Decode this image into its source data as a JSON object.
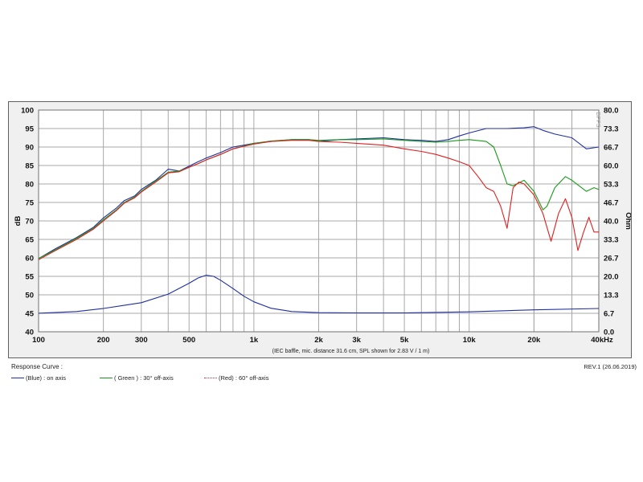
{
  "chart_data": {
    "type": "line",
    "note": "(IEC baffle, mic. distance 31.6 cm, SPL shown for 2.83 V / 1 m)",
    "xlabel": "",
    "ylabel": "dB",
    "y2label": "Ohm",
    "xlim": [
      100,
      40000
    ],
    "xscale": "log",
    "ylim": [
      40,
      100
    ],
    "y2lim": [
      0,
      80
    ],
    "grid": true,
    "x_ticks": [
      {
        "value": 100,
        "label": "100"
      },
      {
        "value": 200,
        "label": "200"
      },
      {
        "value": 300,
        "label": "300"
      },
      {
        "value": 500,
        "label": "500"
      },
      {
        "value": 1000,
        "label": "1k"
      },
      {
        "value": 2000,
        "label": "2k"
      },
      {
        "value": 3000,
        "label": "3k"
      },
      {
        "value": 5000,
        "label": "5k"
      },
      {
        "value": 10000,
        "label": "10k"
      },
      {
        "value": 20000,
        "label": "20k"
      },
      {
        "value": 40000,
        "label": "40kHz"
      }
    ],
    "y_ticks": [
      "40",
      "45",
      "50",
      "55",
      "60",
      "65",
      "70",
      "75",
      "80",
      "85",
      "90",
      "95",
      "100"
    ],
    "y2_ticks": [
      "0.0",
      "6.7",
      "13.3",
      "20.0",
      "26.7",
      "33.3",
      "40.0",
      "46.7",
      "53.3",
      "60.0",
      "66.7",
      "73.3",
      "80.0"
    ],
    "series": [
      {
        "name": "(Blue) : on axis",
        "axis": "left",
        "color": "#1f2fa0",
        "x": [
          100,
          120,
          150,
          180,
          200,
          230,
          250,
          280,
          300,
          350,
          400,
          450,
          500,
          550,
          600,
          700,
          800,
          900,
          1000,
          1200,
          1500,
          1800,
          2000,
          2500,
          3000,
          4000,
          5000,
          6000,
          7000,
          8000,
          9000,
          10000,
          12000,
          15000,
          18000,
          20000,
          22000,
          25000,
          30000,
          35000,
          40000
        ],
        "y": [
          59.8,
          62.5,
          65.5,
          68.3,
          70.8,
          73.5,
          75.5,
          76.8,
          78.5,
          81.0,
          84.0,
          83.5,
          84.8,
          86.0,
          87.0,
          88.5,
          90.0,
          90.5,
          91.0,
          91.5,
          92.0,
          92.0,
          91.5,
          92.0,
          92.2,
          92.5,
          92.0,
          91.8,
          91.5,
          92.0,
          93.0,
          93.8,
          95.0,
          95.0,
          95.2,
          95.5,
          94.5,
          93.5,
          92.5,
          89.5,
          90.0
        ]
      },
      {
        "name": "( Green ) : 30° off-axis",
        "axis": "left",
        "color": "#1a9a1a",
        "x": [
          100,
          120,
          150,
          180,
          200,
          230,
          250,
          280,
          300,
          350,
          400,
          450,
          500,
          550,
          600,
          700,
          800,
          900,
          1000,
          1200,
          1500,
          1800,
          2000,
          2500,
          3000,
          4000,
          5000,
          6000,
          7000,
          8000,
          9000,
          10000,
          12000,
          13000,
          14000,
          15000,
          16000,
          18000,
          20000,
          22000,
          23000,
          25000,
          28000,
          30000,
          35000,
          38000,
          40000
        ],
        "y": [
          59.8,
          62.2,
          65.3,
          68.0,
          70.3,
          73.0,
          75.0,
          76.5,
          78.0,
          80.8,
          83.2,
          83.5,
          84.5,
          85.5,
          86.5,
          88.0,
          89.5,
          90.3,
          91.0,
          91.6,
          92.0,
          92.0,
          91.8,
          92.0,
          92.0,
          92.2,
          91.8,
          91.5,
          91.3,
          91.5,
          91.8,
          92.0,
          91.5,
          90.0,
          85.0,
          80.0,
          79.5,
          81.0,
          78.0,
          73.0,
          74.0,
          79.0,
          82.0,
          81.0,
          78.0,
          79.0,
          78.5
        ]
      },
      {
        "name": "(Red) : 60° off-axis",
        "axis": "left",
        "color": "#e02020",
        "dotted": true,
        "x": [
          100,
          120,
          150,
          180,
          200,
          230,
          250,
          280,
          300,
          350,
          400,
          450,
          500,
          550,
          600,
          700,
          800,
          900,
          1000,
          1200,
          1500,
          1800,
          2000,
          2500,
          3000,
          4000,
          5000,
          6000,
          7000,
          8000,
          9000,
          10000,
          11000,
          12000,
          13000,
          14000,
          15000,
          16000,
          17000,
          18000,
          20000,
          22000,
          24000,
          26000,
          28000,
          30000,
          32000,
          34000,
          36000,
          38000,
          40000
        ],
        "y": [
          59.5,
          62.0,
          65.0,
          67.8,
          70.0,
          72.8,
          74.8,
          76.3,
          77.8,
          80.5,
          83.0,
          83.3,
          84.5,
          85.5,
          86.5,
          88.0,
          89.5,
          90.2,
          90.8,
          91.5,
          91.8,
          91.8,
          91.5,
          91.3,
          91.0,
          90.5,
          89.5,
          88.8,
          88.0,
          87.0,
          86.0,
          85.0,
          82.0,
          79.0,
          78.0,
          74.0,
          68.0,
          79.0,
          80.5,
          80.0,
          77.0,
          72.0,
          64.5,
          72.0,
          76.0,
          71.0,
          62.0,
          67.0,
          71.0,
          67.0,
          67.0
        ]
      },
      {
        "name": "",
        "axis": "right",
        "color": "#1f2fa0",
        "x": [
          100,
          150,
          200,
          300,
          400,
          500,
          550,
          600,
          650,
          700,
          800,
          900,
          1000,
          1200,
          1500,
          2000,
          3000,
          5000,
          10000,
          20000,
          40000
        ],
        "y": [
          6.7,
          7.3,
          8.4,
          10.5,
          13.6,
          17.5,
          19.4,
          20.4,
          20.0,
          18.6,
          15.6,
          12.8,
          10.8,
          8.5,
          7.3,
          6.9,
          6.8,
          6.8,
          7.2,
          7.9,
          8.4
        ]
      }
    ]
  },
  "legend": {
    "title": "Response Curve :",
    "items": [
      {
        "label": "(Blue) : on axis",
        "color": "#1f2fa0"
      },
      {
        "label": "( Green ) : 30° off-axis",
        "color": "#1a9a1a"
      },
      {
        "label": "(Red) : 60° off-axis",
        "color": "#e02020"
      }
    ]
  },
  "revision": "REV.1 (26.06.2019)",
  "logo_text": "DPPS"
}
